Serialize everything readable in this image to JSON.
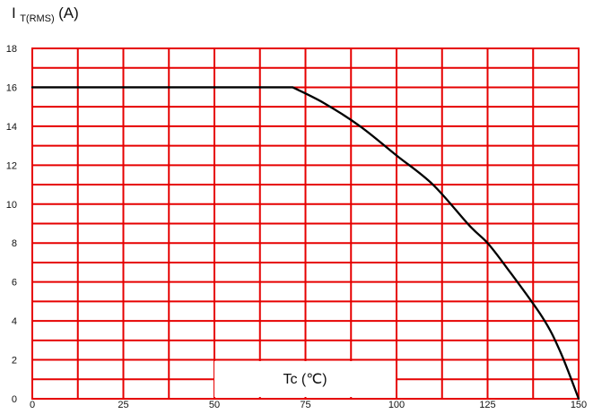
{
  "chart_data": {
    "type": "line",
    "title": "",
    "ylabel": {
      "main": "I",
      "subscript": "T(RMS)",
      "suffix": "(A)"
    },
    "xlabel": "Tc (℃)",
    "xlim": [
      0,
      150
    ],
    "ylim": [
      0,
      18
    ],
    "x_ticks": [
      0,
      25,
      50,
      75,
      100,
      125,
      150
    ],
    "y_ticks": [
      0,
      2,
      4,
      6,
      8,
      10,
      12,
      14,
      16,
      18
    ],
    "x_grid_step": 12.5,
    "y_grid_step": 1,
    "grid": true,
    "grid_color": "#e60000",
    "line_color": "#000000",
    "series": [
      {
        "x": [
          0,
          71.5,
          80,
          90,
          100,
          110,
          120,
          125,
          130,
          140,
          145,
          150
        ],
        "y": [
          16,
          16,
          15.2,
          14.0,
          12.5,
          11.0,
          8.9,
          8.0,
          6.8,
          4.2,
          2.4,
          0
        ]
      }
    ]
  }
}
